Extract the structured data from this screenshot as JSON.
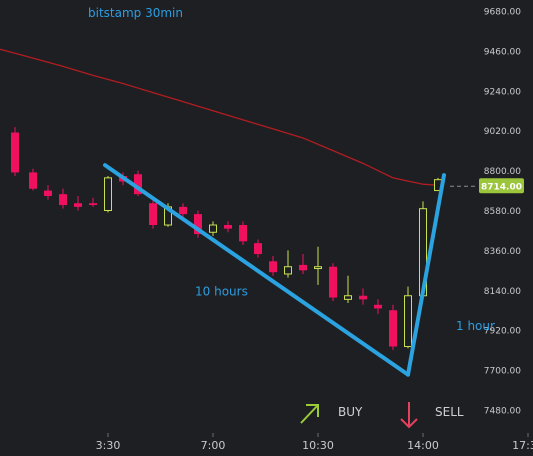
{
  "chart_data": {
    "type": "candlestick",
    "title": "bitstamp 30min",
    "y_ticks": [
      9680,
      9460,
      9240,
      9020,
      8800,
      8580,
      8360,
      8140,
      7920,
      7700,
      7480
    ],
    "y_tick_labels": [
      "9680.00",
      "9460.00",
      "9240.00",
      "9020.00",
      "8800.00",
      "8580.00",
      "8360.00",
      "8140.00",
      "7920.00",
      "7700.00",
      "7480.00"
    ],
    "ylim": [
      7440,
      9700
    ],
    "x_ticks": [
      {
        "label": "3:30",
        "t": 3.5
      },
      {
        "label": "7:00",
        "t": 7.0
      },
      {
        "label": "10:30",
        "t": 10.5
      },
      {
        "label": "14:00",
        "t": 14.0
      },
      {
        "label": "17:30",
        "t": 17.5
      }
    ],
    "xlim": [
      -0.7,
      19.6
    ],
    "price_label": "8714.00",
    "price_value": 8714,
    "candles": [
      {
        "t": 0.4,
        "o": 9010,
        "h": 9040,
        "c": 8790,
        "l": 8770
      },
      {
        "t": 1.0,
        "o": 8790,
        "h": 8810,
        "c": 8700,
        "l": 8690
      },
      {
        "t": 1.5,
        "o": 8690,
        "h": 8720,
        "c": 8660,
        "l": 8640
      },
      {
        "t": 2.0,
        "o": 8670,
        "h": 8700,
        "c": 8610,
        "l": 8590
      },
      {
        "t": 2.5,
        "o": 8620,
        "h": 8660,
        "c": 8600,
        "l": 8580
      },
      {
        "t": 3.0,
        "o": 8620,
        "h": 8650,
        "c": 8610,
        "l": 8600
      },
      {
        "t": 3.5,
        "o": 8580,
        "h": 8770,
        "c": 8760,
        "l": 8570
      },
      {
        "t": 4.0,
        "o": 8770,
        "h": 8790,
        "c": 8740,
        "l": 8720
      },
      {
        "t": 4.5,
        "o": 8780,
        "h": 8800,
        "c": 8670,
        "l": 8660
      },
      {
        "t": 5.0,
        "o": 8620,
        "h": 8660,
        "c": 8500,
        "l": 8480
      },
      {
        "t": 5.5,
        "o": 8500,
        "h": 8620,
        "c": 8600,
        "l": 8490
      },
      {
        "t": 6.0,
        "o": 8600,
        "h": 8620,
        "c": 8560,
        "l": 8540
      },
      {
        "t": 6.5,
        "o": 8560,
        "h": 8580,
        "c": 8450,
        "l": 8430
      },
      {
        "t": 7.0,
        "o": 8460,
        "h": 8520,
        "c": 8500,
        "l": 8440
      },
      {
        "t": 7.5,
        "o": 8500,
        "h": 8520,
        "c": 8480,
        "l": 8460
      },
      {
        "t": 8.0,
        "o": 8500,
        "h": 8520,
        "c": 8410,
        "l": 8390
      },
      {
        "t": 8.5,
        "o": 8400,
        "h": 8420,
        "c": 8340,
        "l": 8320
      },
      {
        "t": 9.0,
        "o": 8300,
        "h": 8330,
        "c": 8240,
        "l": 8220
      },
      {
        "t": 9.5,
        "o": 8230,
        "h": 8360,
        "c": 8270,
        "l": 8210
      },
      {
        "t": 10.0,
        "o": 8280,
        "h": 8340,
        "c": 8250,
        "l": 8230
      },
      {
        "t": 10.5,
        "o": 8260,
        "h": 8380,
        "c": 8270,
        "l": 8170
      },
      {
        "t": 11.0,
        "o": 8270,
        "h": 8290,
        "c": 8100,
        "l": 8080
      },
      {
        "t": 11.5,
        "o": 8090,
        "h": 8220,
        "c": 8110,
        "l": 8070
      },
      {
        "t": 12.0,
        "o": 8110,
        "h": 8150,
        "c": 8090,
        "l": 8060
      },
      {
        "t": 12.5,
        "o": 8060,
        "h": 8090,
        "c": 8040,
        "l": 8010
      },
      {
        "t": 13.0,
        "o": 8030,
        "h": 8060,
        "c": 7830,
        "l": 7810
      },
      {
        "t": 13.5,
        "o": 7830,
        "h": 8160,
        "c": 8110,
        "l": 7820
      },
      {
        "t": 14.0,
        "o": 8110,
        "h": 8630,
        "c": 8590,
        "l": 8100
      },
      {
        "t": 14.5,
        "o": 8690,
        "h": 8760,
        "c": 8750,
        "l": 8690
      }
    ],
    "moving_average": [
      {
        "t": -0.7,
        "v": 9490
      },
      {
        "t": 0.0,
        "v": 9465
      },
      {
        "t": 1.0,
        "v": 9420
      },
      {
        "t": 2.0,
        "v": 9375
      },
      {
        "t": 3.0,
        "v": 9325
      },
      {
        "t": 4.0,
        "v": 9280
      },
      {
        "t": 5.0,
        "v": 9230
      },
      {
        "t": 6.0,
        "v": 9180
      },
      {
        "t": 7.0,
        "v": 9130
      },
      {
        "t": 8.0,
        "v": 9080
      },
      {
        "t": 9.0,
        "v": 9030
      },
      {
        "t": 10.0,
        "v": 8980
      },
      {
        "t": 11.0,
        "v": 8910
      },
      {
        "t": 12.0,
        "v": 8840
      },
      {
        "t": 13.0,
        "v": 8760
      },
      {
        "t": 14.0,
        "v": 8725
      },
      {
        "t": 14.6,
        "v": 8718
      }
    ],
    "trend_down": [
      {
        "t": 3.4,
        "v": 8830
      },
      {
        "t": 13.5,
        "v": 7675
      }
    ],
    "trend_up": [
      {
        "t": 13.5,
        "v": 7675
      },
      {
        "t": 14.7,
        "v": 8775
      }
    ],
    "annotations": [
      {
        "text": "10 hours",
        "t": 6.4,
        "v": 8110
      },
      {
        "text": "1 hour",
        "t": 15.1,
        "v": 7920
      }
    ],
    "colors": {
      "up": "#c8e052",
      "down": "#f0115e",
      "ma": "#b11d21",
      "trend": "#2aa3e0",
      "price_label_bg": "#9bc53a",
      "title": "#2d9de0",
      "axis_text": "#c9cacb"
    }
  },
  "actions": {
    "buy_label": "BUY",
    "sell_label": "SELL",
    "buy_icon": "arrow-up-right-icon",
    "sell_icon": "arrow-down-icon",
    "buy_color": "#9ccc35",
    "sell_color": "#e4405f"
  }
}
